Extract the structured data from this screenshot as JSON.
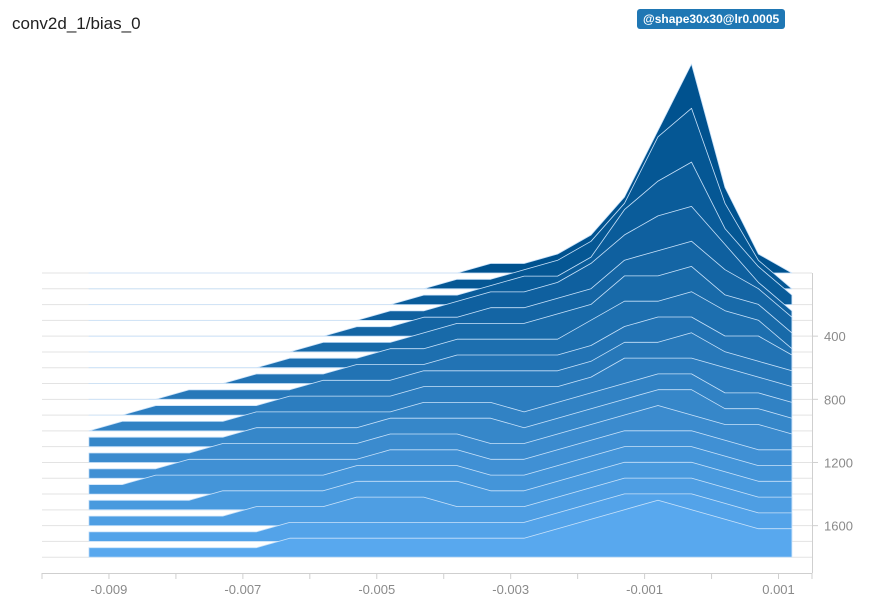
{
  "title": "conv2d_1/bias_0",
  "run_badge": "@shape30x30@lr0.0005",
  "colors": {
    "front": "#58a8ee",
    "back": "#00528f",
    "stroke": "#c9e2fa",
    "axis": "#cfcfcf",
    "baseline": "#e3e3e3"
  },
  "chart_data": {
    "type": "histogram-offset",
    "title": "conv2d_1/bias_0",
    "xlabel": "",
    "ylabel": "",
    "xlim": [
      -0.01,
      0.0015
    ],
    "ylim": [
      0,
      1900
    ],
    "x_ticks": [
      "-0.009",
      "-0.007",
      "-0.005",
      "-0.003",
      "-0.001",
      "0.001"
    ],
    "x_tick_values": [
      -0.009,
      -0.007,
      -0.005,
      -0.003,
      -0.001,
      0.001
    ],
    "y_ticks": [
      "400",
      "800",
      "1200",
      "1600"
    ],
    "y_tick_values": [
      400,
      800,
      1200,
      1600
    ],
    "bin_centers": [
      -0.0093,
      -0.0088,
      -0.0083,
      -0.0078,
      -0.0073,
      -0.0068,
      -0.0063,
      -0.0058,
      -0.0053,
      -0.0048,
      -0.0043,
      -0.0038,
      -0.0033,
      -0.0028,
      -0.0023,
      -0.0018,
      -0.0013,
      -0.0008,
      -0.0003,
      0.0002,
      0.0007,
      0.0012
    ],
    "series": [
      {
        "step": 0,
        "values": [
          0,
          0,
          0,
          0,
          0,
          0,
          0,
          0,
          0,
          0,
          0,
          0,
          1,
          1,
          2,
          4,
          8,
          15,
          22,
          9,
          2,
          0
        ]
      },
      {
        "step": 100,
        "values": [
          0,
          0,
          0,
          0,
          0,
          0,
          0,
          0,
          0,
          0,
          0,
          1,
          1,
          2,
          3,
          5,
          9,
          16,
          19,
          9,
          3,
          0
        ]
      },
      {
        "step": 200,
        "values": [
          0,
          0,
          0,
          0,
          0,
          0,
          0,
          0,
          0,
          0,
          1,
          1,
          2,
          3,
          3,
          5,
          10,
          13,
          15,
          8,
          4,
          1
        ]
      },
      {
        "step": 300,
        "values": [
          0,
          0,
          0,
          0,
          0,
          0,
          0,
          0,
          0,
          1,
          1,
          2,
          3,
          3,
          4,
          6,
          9,
          11,
          12,
          8,
          4,
          1
        ]
      },
      {
        "step": 400,
        "values": [
          0,
          0,
          0,
          0,
          0,
          0,
          0,
          0,
          1,
          1,
          2,
          2,
          3,
          3,
          4,
          5,
          8,
          9,
          10,
          7,
          5,
          2
        ]
      },
      {
        "step": 500,
        "values": [
          0,
          0,
          0,
          0,
          0,
          0,
          0,
          1,
          1,
          1,
          2,
          3,
          3,
          3,
          4,
          5,
          8,
          8,
          9,
          6,
          5,
          2
        ]
      },
      {
        "step": 600,
        "values": [
          0,
          0,
          0,
          0,
          0,
          0,
          1,
          1,
          1,
          2,
          2,
          3,
          3,
          3,
          3,
          5,
          7,
          7,
          8,
          6,
          5,
          2
        ]
      },
      {
        "step": 700,
        "values": [
          0,
          0,
          0,
          0,
          0,
          1,
          1,
          1,
          2,
          2,
          2,
          3,
          3,
          3,
          3,
          4,
          6,
          7,
          7,
          5,
          5,
          3
        ]
      },
      {
        "step": 800,
        "values": [
          0,
          0,
          0,
          1,
          1,
          1,
          1,
          2,
          2,
          2,
          3,
          3,
          3,
          3,
          3,
          4,
          6,
          6,
          7,
          5,
          4,
          3
        ]
      },
      {
        "step": 900,
        "values": [
          0,
          0,
          1,
          1,
          1,
          1,
          2,
          2,
          2,
          2,
          3,
          3,
          3,
          3,
          3,
          4,
          6,
          6,
          6,
          5,
          4,
          3
        ]
      },
      {
        "step": 1000,
        "values": [
          0,
          1,
          1,
          1,
          1,
          2,
          2,
          2,
          2,
          2,
          3,
          3,
          3,
          2,
          3,
          4,
          5,
          6,
          6,
          4,
          4,
          3
        ]
      },
      {
        "step": 1100,
        "values": [
          1,
          1,
          1,
          1,
          1,
          2,
          2,
          2,
          2,
          3,
          3,
          3,
          3,
          2,
          3,
          4,
          5,
          6,
          6,
          4,
          4,
          3
        ]
      },
      {
        "step": 1200,
        "values": [
          1,
          1,
          1,
          1,
          2,
          2,
          2,
          2,
          2,
          3,
          3,
          3,
          2,
          2,
          3,
          4,
          5,
          6,
          5,
          4,
          4,
          3
        ]
      },
      {
        "step": 1300,
        "values": [
          1,
          1,
          1,
          2,
          2,
          2,
          2,
          2,
          2,
          3,
          3,
          3,
          2,
          2,
          3,
          4,
          5,
          5,
          5,
          4,
          3,
          3
        ]
      },
      {
        "step": 1400,
        "values": [
          1,
          1,
          2,
          2,
          2,
          2,
          2,
          2,
          3,
          3,
          3,
          3,
          2,
          2,
          3,
          4,
          5,
          5,
          5,
          4,
          3,
          3
        ]
      },
      {
        "step": 1500,
        "values": [
          1,
          1,
          1,
          1,
          2,
          2,
          2,
          2,
          3,
          3,
          3,
          3,
          2,
          2,
          3,
          4,
          5,
          5,
          5,
          4,
          3,
          3
        ]
      },
      {
        "step": 1600,
        "values": [
          1,
          1,
          1,
          1,
          1,
          2,
          2,
          2,
          3,
          3,
          3,
          2,
          2,
          2,
          3,
          4,
          5,
          5,
          5,
          4,
          3,
          3
        ]
      },
      {
        "step": 1700,
        "values": [
          1,
          1,
          1,
          1,
          1,
          1,
          2,
          2,
          2,
          2,
          2,
          2,
          2,
          2,
          3,
          4,
          5,
          5,
          5,
          4,
          3,
          3
        ]
      },
      {
        "step": 1800,
        "values": [
          1,
          1,
          1,
          1,
          1,
          1,
          2,
          2,
          2,
          2,
          2,
          2,
          2,
          2,
          3,
          4,
          5,
          6,
          5,
          4,
          3,
          3
        ]
      }
    ]
  }
}
